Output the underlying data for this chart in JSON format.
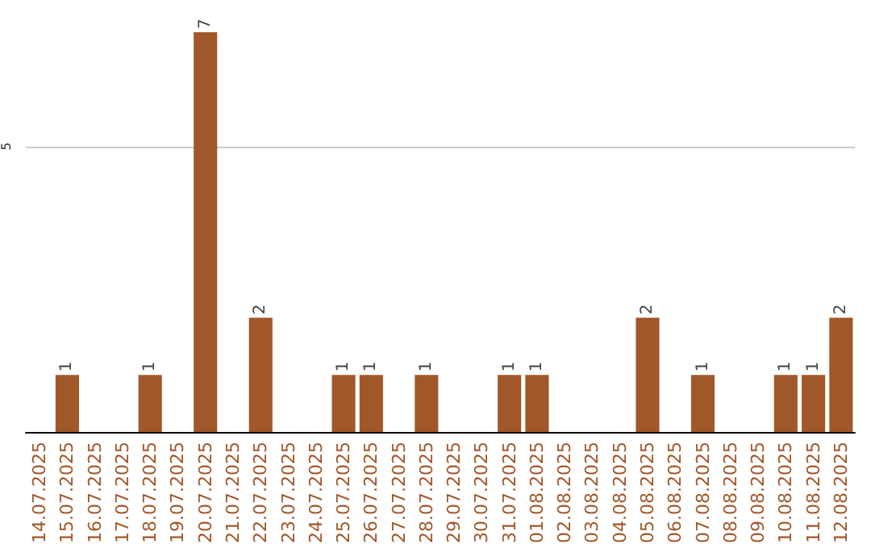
{
  "chart_data": {
    "type": "bar",
    "categories": [
      "14.07.2025",
      "15.07.2025",
      "16.07.2025",
      "17.07.2025",
      "18.07.2025",
      "19.07.2025",
      "20.07.2025",
      "21.07.2025",
      "22.07.2025",
      "23.07.2025",
      "24.07.2025",
      "25.07.2025",
      "26.07.2025",
      "27.07.2025",
      "28.07.2025",
      "29.07.2025",
      "30.07.2025",
      "31.07.2025",
      "01.08.2025",
      "02.08.2025",
      "03.08.2025",
      "04.08.2025",
      "05.08.2025",
      "06.08.2025",
      "07.08.2025",
      "08.08.2025",
      "09.08.2025",
      "10.08.2025",
      "11.08.2025",
      "12.08.2025"
    ],
    "values": [
      0,
      1,
      0,
      0,
      1,
      0,
      7,
      0,
      2,
      0,
      0,
      1,
      1,
      0,
      1,
      0,
      0,
      1,
      1,
      0,
      0,
      0,
      2,
      0,
      1,
      0,
      0,
      1,
      1,
      2
    ],
    "value_labels": [
      null,
      "1",
      null,
      null,
      "1",
      null,
      "7",
      null,
      "2",
      null,
      null,
      "1",
      "1",
      null,
      "1",
      null,
      null,
      "1",
      "1",
      null,
      null,
      null,
      "2",
      null,
      "1",
      null,
      null,
      "1",
      "1",
      "2"
    ],
    "color": "#a0582a",
    "ylim": [
      0,
      7
    ],
    "yticks": [
      5
    ],
    "grid": "y"
  }
}
